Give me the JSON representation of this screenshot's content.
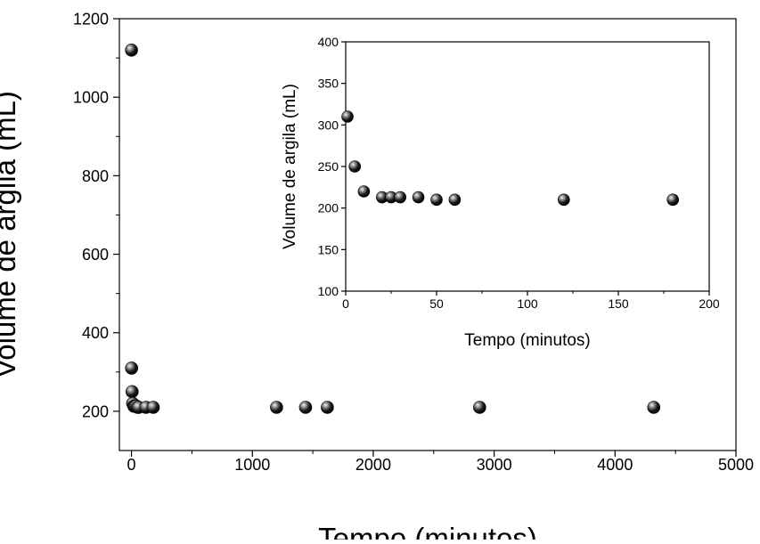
{
  "chart_data": [
    {
      "type": "scatter",
      "xlabel": "Tempo (minutos)",
      "ylabel": "Volume de argila (mL)",
      "xlim": [
        -100,
        5000
      ],
      "ylim": [
        100,
        1200
      ],
      "xticks": [
        "0",
        "1000",
        "2000",
        "3000",
        "4000",
        "5000"
      ],
      "yticks": [
        "200",
        "400",
        "600",
        "800",
        "1000",
        "1200"
      ],
      "grid": false,
      "marker_color": "#111111",
      "series": [
        {
          "x": [
            0,
            1,
            5,
            10,
            20,
            25,
            30,
            40,
            50,
            60,
            120,
            180,
            1200,
            1440,
            1620,
            2880,
            4320
          ],
          "y": [
            1120,
            310,
            250,
            220,
            213,
            213,
            213,
            213,
            210,
            210,
            210,
            210,
            210,
            210,
            210,
            210,
            210
          ]
        }
      ]
    },
    {
      "type": "scatter",
      "xlabel": "Tempo (minutos)",
      "ylabel": "Volume de argila (mL)",
      "xlim": [
        0,
        200
      ],
      "ylim": [
        100,
        400
      ],
      "xticks": [
        "0",
        "50",
        "100",
        "150",
        "200"
      ],
      "yticks": [
        "100",
        "150",
        "200",
        "250",
        "300",
        "350",
        "400"
      ],
      "grid": false,
      "marker_color": "#111111",
      "series": [
        {
          "x": [
            1,
            5,
            10,
            20,
            25,
            30,
            40,
            50,
            60,
            120,
            180
          ],
          "y": [
            310,
            250,
            220,
            213,
            213,
            213,
            213,
            210,
            210,
            210,
            210
          ]
        }
      ]
    }
  ]
}
